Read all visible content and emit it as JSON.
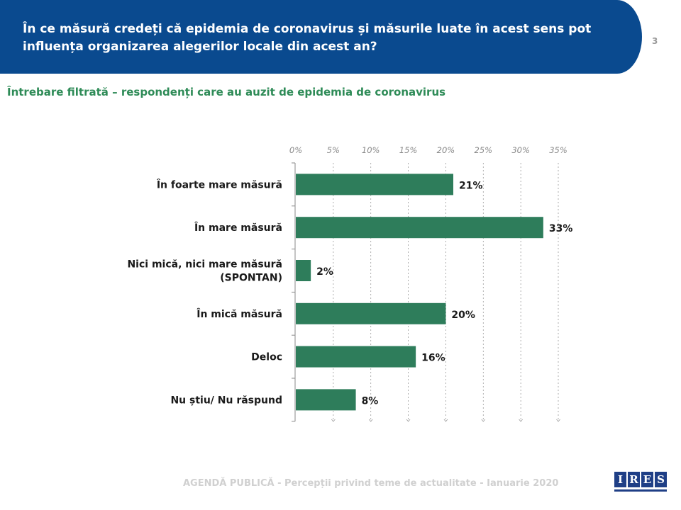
{
  "header": {
    "title": "În ce măsură credeți că epidemia de coronavirus și măsurile luate în acest sens pot influența organizarea alegerilor locale din acest an?",
    "page_number": "3"
  },
  "subtitle": "Întrebare filtrată – respondenți care au auzit de epidemia de coronavirus",
  "chart_data": {
    "type": "bar",
    "orientation": "horizontal",
    "title": "",
    "xlabel": "",
    "ylabel": "",
    "xlim": [
      0,
      35
    ],
    "ticks": [
      0,
      5,
      10,
      15,
      20,
      25,
      30,
      35
    ],
    "tick_labels": [
      "0%",
      "5%",
      "10%",
      "15%",
      "20%",
      "25%",
      "30%",
      "35%"
    ],
    "categories": [
      [
        "În foarte mare măsură"
      ],
      [
        "În mare măsură"
      ],
      [
        "Nici mică, nici mare măsură",
        "(SPONTAN)"
      ],
      [
        "În mică măsură"
      ],
      [
        "Deloc"
      ],
      [
        "Nu știu/ Nu răspund"
      ]
    ],
    "values": [
      21,
      33,
      2,
      20,
      16,
      8
    ],
    "value_labels": [
      "21%",
      "33%",
      "2%",
      "20%",
      "16%",
      "8%"
    ],
    "bar_color": "#2e7d5b",
    "axis_color": "#8a8a8a"
  },
  "footer": {
    "text": "AGENDĂ PUBLICĂ - Percepții privind teme de actualitate - Ianuarie 2020",
    "logo_letters": [
      "I",
      "R",
      "E",
      "S"
    ]
  }
}
